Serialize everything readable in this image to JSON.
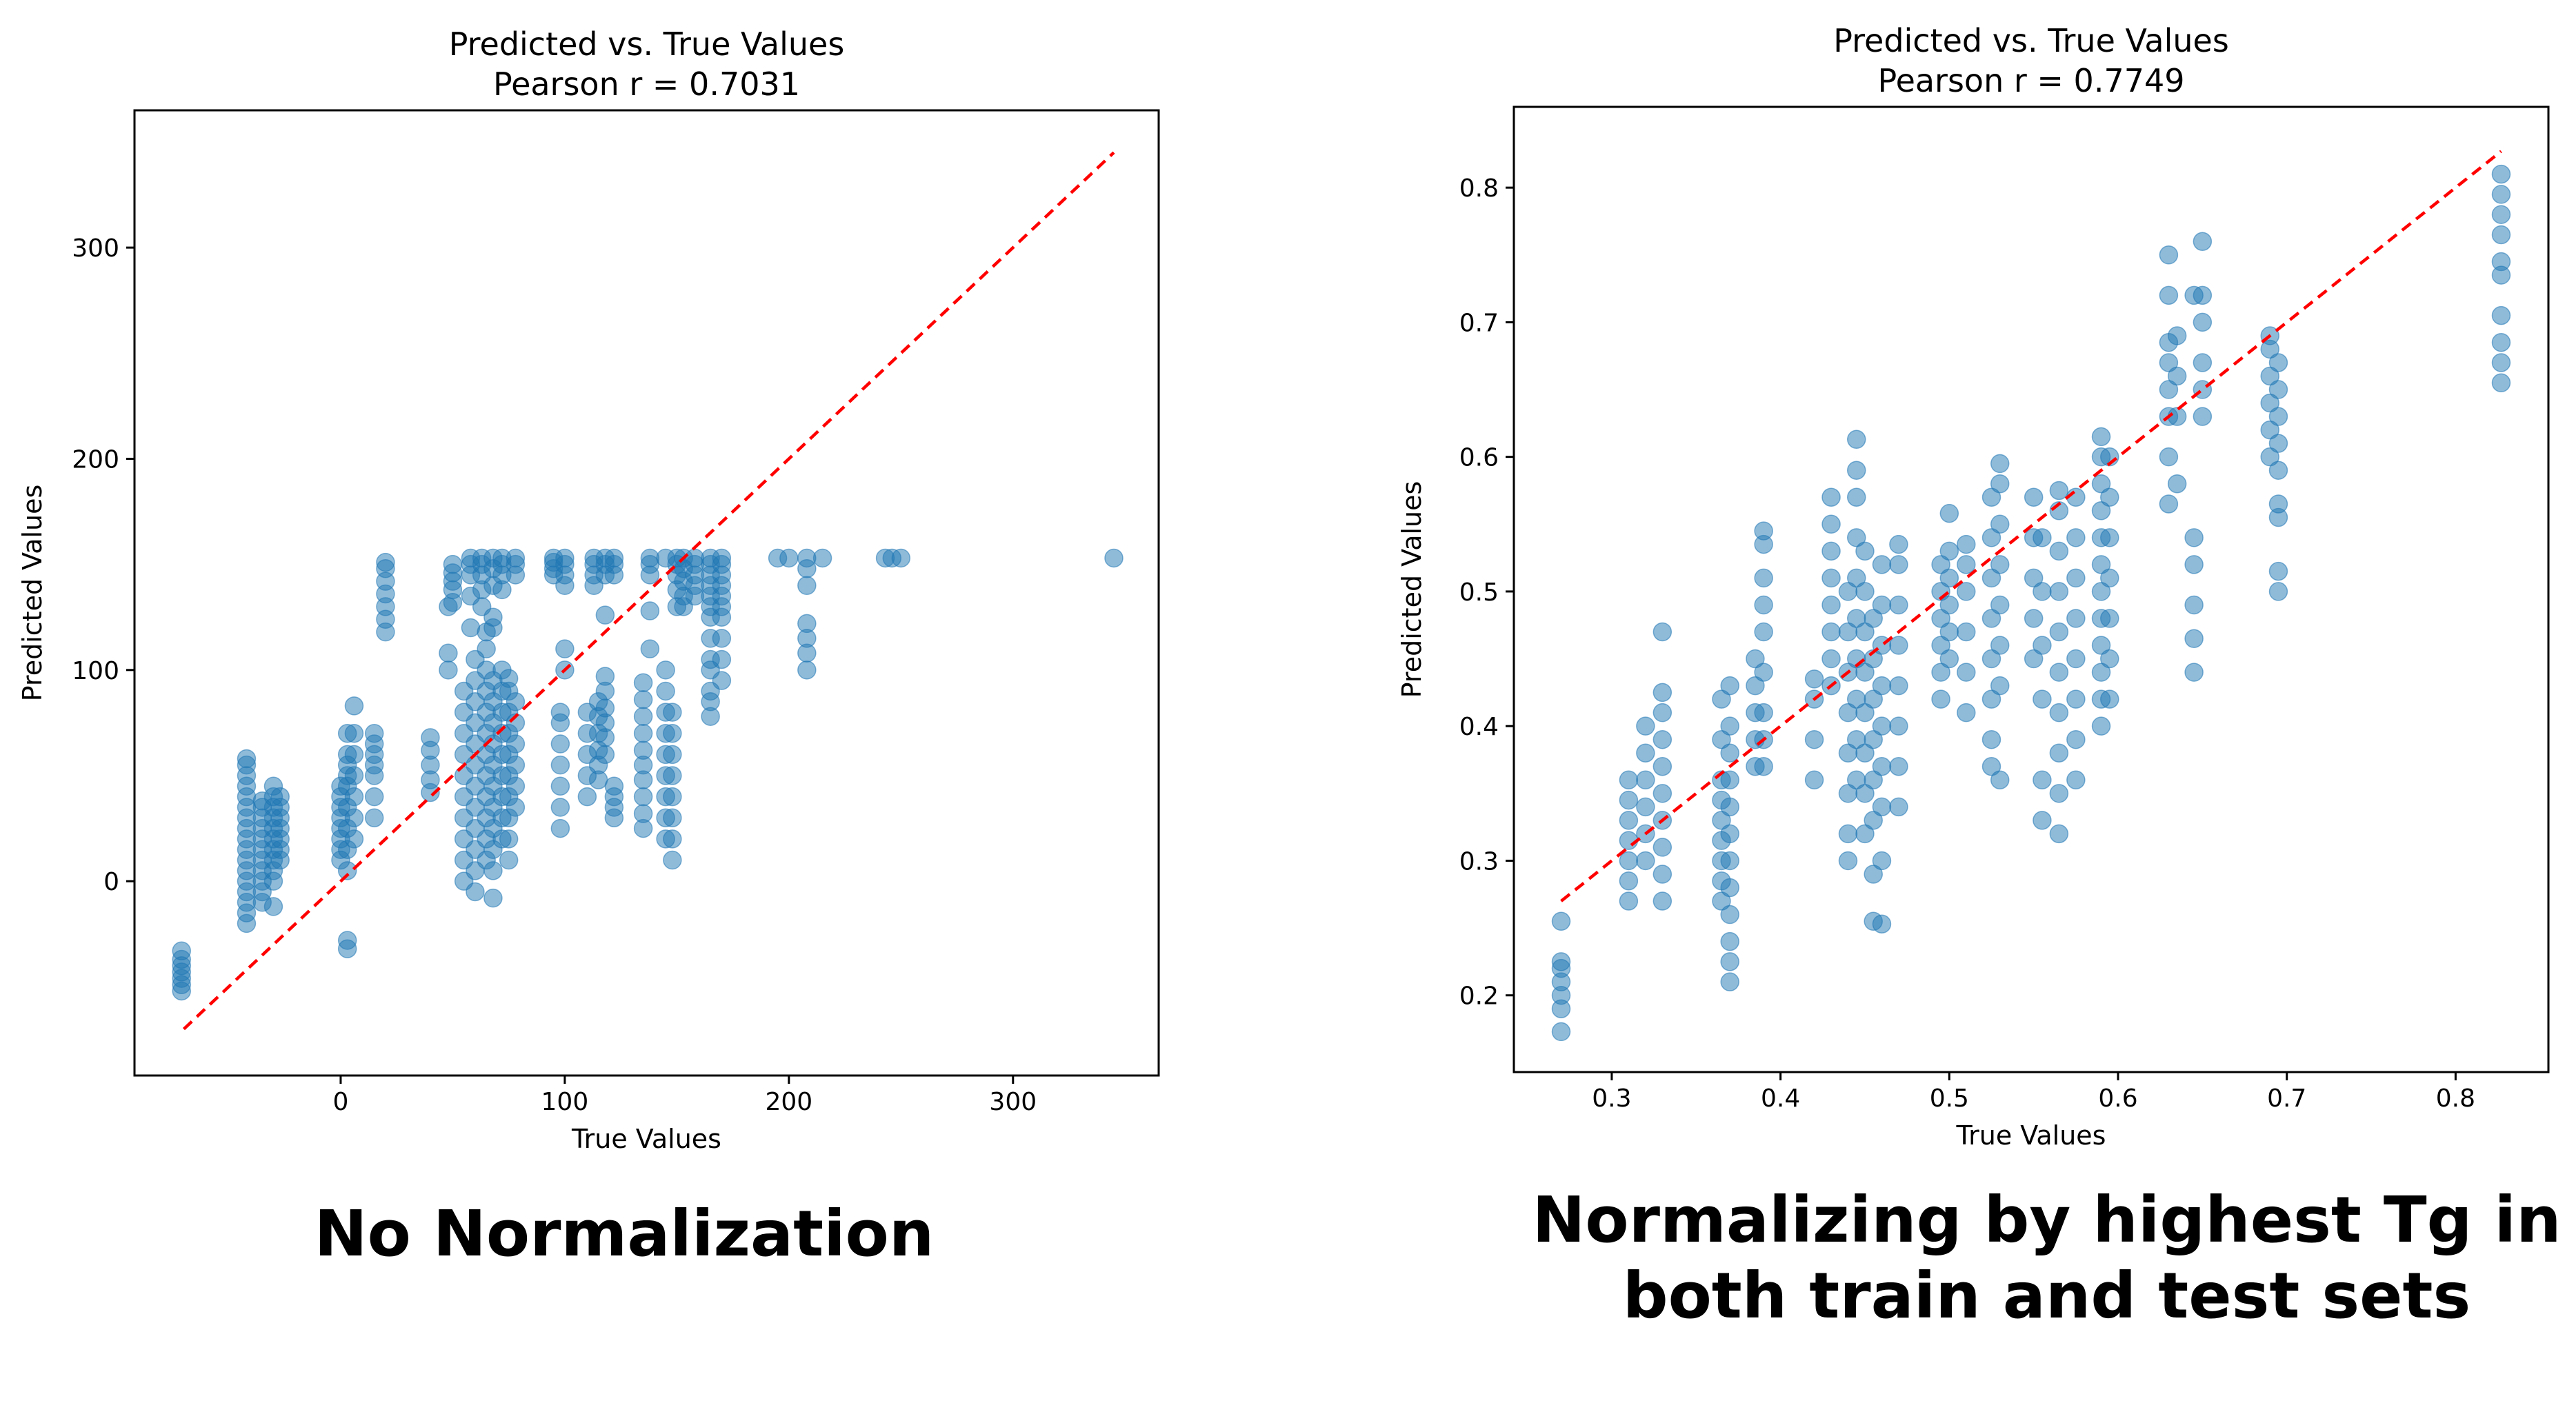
{
  "colors": {
    "points": "#1f77b4",
    "reference_line": "#ff0000",
    "axis": "#000000"
  },
  "captions": {
    "left": "No Normalization",
    "right_line1": "Normalizing by highest Tg in",
    "right_line2": "both train and test sets"
  },
  "chart_data": [
    {
      "type": "scatter",
      "title": "Predicted vs. True Values",
      "subtitle": "Pearson r = 0.7031",
      "xlabel": "True Values",
      "ylabel": "Predicted Values",
      "xlim": [
        -92,
        365
      ],
      "ylim": [
        -92,
        365
      ],
      "xticks": [
        0,
        100,
        200,
        300
      ],
      "yticks": [
        0,
        100,
        200,
        300
      ],
      "xticklabels": [
        "0",
        "100",
        "200",
        "300"
      ],
      "yticklabels": [
        "0",
        "100",
        "200",
        "300"
      ],
      "grid": false,
      "reference_line": {
        "x": [
          -70,
          345
        ],
        "y": [
          -70,
          345
        ]
      },
      "groups": [
        {
          "x": -71,
          "y": [
            -52,
            -49,
            -46,
            -43,
            -40,
            -37,
            -33
          ]
        },
        {
          "x": -42,
          "y": [
            -20,
            -15,
            -10,
            -5,
            0,
            5,
            10,
            15,
            20,
            25,
            30,
            35,
            40,
            45,
            50,
            55,
            58
          ]
        },
        {
          "x": -35,
          "y": [
            -10,
            -5,
            0,
            5,
            10,
            15,
            20,
            25,
            30,
            35,
            38
          ]
        },
        {
          "x": -30,
          "y": [
            -12,
            0,
            5,
            10,
            15,
            20,
            25,
            30,
            35,
            40,
            45
          ]
        },
        {
          "x": -27,
          "y": [
            10,
            15,
            20,
            25,
            30,
            35,
            40
          ]
        },
        {
          "x": 0,
          "y": [
            10,
            15,
            20,
            25,
            30,
            35,
            40,
            45
          ]
        },
        {
          "x": 3,
          "y": [
            -32,
            -28,
            5,
            15,
            25,
            35,
            45,
            50,
            55,
            60,
            70
          ]
        },
        {
          "x": 6,
          "y": [
            20,
            30,
            40,
            50,
            60,
            70,
            83
          ]
        },
        {
          "x": 15,
          "y": [
            30,
            40,
            50,
            55,
            60,
            65,
            70
          ]
        },
        {
          "x": 20,
          "y": [
            118,
            124,
            130,
            136,
            142,
            148,
            151
          ]
        },
        {
          "x": 40,
          "y": [
            42,
            48,
            55,
            62,
            68
          ]
        },
        {
          "x": 48,
          "y": [
            100,
            108,
            130
          ]
        },
        {
          "x": 50,
          "y": [
            132,
            138,
            142,
            146,
            150
          ]
        },
        {
          "x": 55,
          "y": [
            0,
            10,
            20,
            30,
            40,
            50,
            60,
            70,
            80,
            90
          ]
        },
        {
          "x": 58,
          "y": [
            120,
            135,
            145,
            150,
            153
          ]
        },
        {
          "x": 60,
          "y": [
            -5,
            5,
            15,
            25,
            35,
            45,
            55,
            65,
            75,
            85,
            95,
            105
          ]
        },
        {
          "x": 63,
          "y": [
            130,
            138,
            145,
            150,
            153
          ]
        },
        {
          "x": 65,
          "y": [
            10,
            20,
            30,
            40,
            50,
            60,
            70,
            80,
            90,
            100,
            110,
            118
          ]
        },
        {
          "x": 68,
          "y": [
            -8,
            5,
            15,
            25,
            35,
            45,
            55,
            65,
            75,
            85,
            95,
            120,
            125,
            140,
            148,
            153
          ]
        },
        {
          "x": 72,
          "y": [
            20,
            30,
            40,
            50,
            60,
            70,
            80,
            90,
            100,
            138,
            145,
            150,
            153
          ]
        },
        {
          "x": 75,
          "y": [
            10,
            20,
            30,
            40,
            50,
            60,
            70,
            80,
            90,
            96
          ]
        },
        {
          "x": 78,
          "y": [
            35,
            45,
            55,
            65,
            75,
            85,
            145,
            150,
            153
          ]
        },
        {
          "x": 95,
          "y": [
            145,
            148,
            151,
            153
          ]
        },
        {
          "x": 98,
          "y": [
            25,
            35,
            45,
            55,
            65,
            75,
            80
          ]
        },
        {
          "x": 100,
          "y": [
            100,
            110,
            140,
            145,
            150,
            153
          ]
        },
        {
          "x": 110,
          "y": [
            40,
            50,
            60,
            70,
            80
          ]
        },
        {
          "x": 113,
          "y": [
            140,
            145,
            150,
            153
          ]
        },
        {
          "x": 115,
          "y": [
            48,
            55,
            62,
            70,
            78,
            85
          ]
        },
        {
          "x": 118,
          "y": [
            60,
            68,
            75,
            82,
            90,
            97,
            126,
            145,
            150,
            153
          ]
        },
        {
          "x": 122,
          "y": [
            30,
            35,
            40,
            45,
            145,
            150,
            153
          ]
        },
        {
          "x": 135,
          "y": [
            25,
            32,
            40,
            48,
            55,
            62,
            70,
            78,
            86,
            94
          ]
        },
        {
          "x": 138,
          "y": [
            110,
            128,
            145,
            150,
            153
          ]
        },
        {
          "x": 145,
          "y": [
            20,
            30,
            40,
            50,
            60,
            70,
            80,
            90,
            100,
            153
          ]
        },
        {
          "x": 148,
          "y": [
            10,
            20,
            30,
            40,
            50,
            60,
            70,
            80
          ]
        },
        {
          "x": 150,
          "y": [
            130,
            138,
            145,
            150,
            153
          ]
        },
        {
          "x": 153,
          "y": [
            130,
            135,
            142,
            148,
            153
          ]
        },
        {
          "x": 158,
          "y": [
            135,
            140,
            145,
            150,
            153
          ]
        },
        {
          "x": 165,
          "y": [
            78,
            85,
            90,
            100,
            105,
            115,
            125,
            130,
            135,
            140,
            145,
            150,
            153
          ]
        },
        {
          "x": 170,
          "y": [
            95,
            105,
            115,
            125,
            130,
            135,
            140,
            145,
            150,
            153
          ]
        },
        {
          "x": 195,
          "y": [
            153
          ]
        },
        {
          "x": 200,
          "y": [
            153
          ]
        },
        {
          "x": 208,
          "y": [
            100,
            108,
            115,
            122,
            140,
            148,
            153
          ]
        },
        {
          "x": 215,
          "y": [
            153
          ]
        },
        {
          "x": 243,
          "y": [
            153
          ]
        },
        {
          "x": 246,
          "y": [
            153
          ]
        },
        {
          "x": 250,
          "y": [
            153
          ]
        },
        {
          "x": 345,
          "y": [
            153
          ]
        }
      ]
    },
    {
      "type": "scatter",
      "title": "Predicted vs. True Values",
      "subtitle": "Pearson r = 0.7749",
      "xlabel": "True Values",
      "ylabel": "Predicted Values",
      "xlim": [
        0.242,
        0.855
      ],
      "ylim": [
        0.143,
        0.86
      ],
      "xticks": [
        0.3,
        0.4,
        0.5,
        0.6,
        0.7,
        0.8
      ],
      "yticks": [
        0.2,
        0.3,
        0.4,
        0.5,
        0.6,
        0.7,
        0.8
      ],
      "xticklabels": [
        "0.3",
        "0.4",
        "0.5",
        "0.6",
        "0.7",
        "0.8"
      ],
      "yticklabels": [
        "0.2",
        "0.3",
        "0.4",
        "0.5",
        "0.6",
        "0.7",
        "0.8"
      ],
      "grid": false,
      "reference_line": {
        "x": [
          0.27,
          0.827
        ],
        "y": [
          0.27,
          0.827
        ]
      },
      "groups": [
        {
          "x": 0.27,
          "y": [
            0.173,
            0.19,
            0.2,
            0.21,
            0.22,
            0.225,
            0.255
          ]
        },
        {
          "x": 0.31,
          "y": [
            0.27,
            0.285,
            0.3,
            0.315,
            0.33,
            0.345,
            0.36
          ]
        },
        {
          "x": 0.32,
          "y": [
            0.3,
            0.32,
            0.34,
            0.36,
            0.38,
            0.4
          ]
        },
        {
          "x": 0.33,
          "y": [
            0.27,
            0.29,
            0.31,
            0.33,
            0.35,
            0.37,
            0.39,
            0.41,
            0.425,
            0.47
          ]
        },
        {
          "x": 0.365,
          "y": [
            0.27,
            0.285,
            0.3,
            0.315,
            0.33,
            0.345,
            0.36,
            0.39,
            0.42
          ]
        },
        {
          "x": 0.37,
          "y": [
            0.21,
            0.225,
            0.24,
            0.26,
            0.28,
            0.3,
            0.32,
            0.34,
            0.36,
            0.38,
            0.4,
            0.43
          ]
        },
        {
          "x": 0.385,
          "y": [
            0.37,
            0.39,
            0.41,
            0.43,
            0.45
          ]
        },
        {
          "x": 0.39,
          "y": [
            0.37,
            0.39,
            0.41,
            0.44,
            0.47,
            0.49,
            0.51,
            0.535,
            0.545
          ]
        },
        {
          "x": 0.42,
          "y": [
            0.36,
            0.39,
            0.42,
            0.435
          ]
        },
        {
          "x": 0.43,
          "y": [
            0.43,
            0.45,
            0.47,
            0.49,
            0.51,
            0.53,
            0.55,
            0.57
          ]
        },
        {
          "x": 0.44,
          "y": [
            0.3,
            0.32,
            0.35,
            0.38,
            0.41,
            0.44,
            0.47,
            0.5
          ]
        },
        {
          "x": 0.445,
          "y": [
            0.36,
            0.39,
            0.42,
            0.45,
            0.48,
            0.51,
            0.54,
            0.57,
            0.59,
            0.613
          ]
        },
        {
          "x": 0.45,
          "y": [
            0.32,
            0.35,
            0.38,
            0.41,
            0.44,
            0.47,
            0.5,
            0.53
          ]
        },
        {
          "x": 0.455,
          "y": [
            0.255,
            0.29,
            0.33,
            0.36,
            0.39,
            0.42,
            0.45,
            0.48
          ]
        },
        {
          "x": 0.46,
          "y": [
            0.253,
            0.3,
            0.34,
            0.37,
            0.4,
            0.43,
            0.46,
            0.49,
            0.52
          ]
        },
        {
          "x": 0.47,
          "y": [
            0.34,
            0.37,
            0.4,
            0.43,
            0.46,
            0.49,
            0.52,
            0.535
          ]
        },
        {
          "x": 0.495,
          "y": [
            0.42,
            0.44,
            0.46,
            0.48,
            0.5,
            0.52
          ]
        },
        {
          "x": 0.5,
          "y": [
            0.45,
            0.47,
            0.49,
            0.51,
            0.53,
            0.558
          ]
        },
        {
          "x": 0.51,
          "y": [
            0.41,
            0.44,
            0.47,
            0.5,
            0.52,
            0.535
          ]
        },
        {
          "x": 0.525,
          "y": [
            0.37,
            0.39,
            0.42,
            0.45,
            0.48,
            0.51,
            0.54,
            0.57
          ]
        },
        {
          "x": 0.53,
          "y": [
            0.36,
            0.43,
            0.46,
            0.49,
            0.52,
            0.55,
            0.58,
            0.595
          ]
        },
        {
          "x": 0.55,
          "y": [
            0.45,
            0.48,
            0.51,
            0.54,
            0.57
          ]
        },
        {
          "x": 0.555,
          "y": [
            0.33,
            0.36,
            0.42,
            0.46,
            0.5,
            0.54
          ]
        },
        {
          "x": 0.565,
          "y": [
            0.32,
            0.35,
            0.38,
            0.41,
            0.44,
            0.47,
            0.5,
            0.53,
            0.56,
            0.575
          ]
        },
        {
          "x": 0.575,
          "y": [
            0.36,
            0.39,
            0.42,
            0.45,
            0.48,
            0.51,
            0.54,
            0.57
          ]
        },
        {
          "x": 0.59,
          "y": [
            0.4,
            0.42,
            0.44,
            0.46,
            0.48,
            0.5,
            0.52,
            0.54,
            0.56,
            0.58,
            0.6,
            0.615
          ]
        },
        {
          "x": 0.595,
          "y": [
            0.42,
            0.45,
            0.48,
            0.51,
            0.54,
            0.57,
            0.6
          ]
        },
        {
          "x": 0.63,
          "y": [
            0.565,
            0.6,
            0.63,
            0.65,
            0.67,
            0.685,
            0.72,
            0.75
          ]
        },
        {
          "x": 0.635,
          "y": [
            0.58,
            0.63,
            0.66,
            0.69
          ]
        },
        {
          "x": 0.645,
          "y": [
            0.44,
            0.465,
            0.49,
            0.52,
            0.54,
            0.72
          ]
        },
        {
          "x": 0.65,
          "y": [
            0.63,
            0.65,
            0.67,
            0.7,
            0.72,
            0.76
          ]
        },
        {
          "x": 0.69,
          "y": [
            0.6,
            0.62,
            0.64,
            0.66,
            0.68,
            0.69
          ]
        },
        {
          "x": 0.695,
          "y": [
            0.5,
            0.515,
            0.555,
            0.565,
            0.59,
            0.61,
            0.63,
            0.65,
            0.67
          ]
        },
        {
          "x": 0.827,
          "y": [
            0.655,
            0.67,
            0.685,
            0.705,
            0.735,
            0.745,
            0.765,
            0.78,
            0.795,
            0.81
          ]
        }
      ]
    }
  ]
}
